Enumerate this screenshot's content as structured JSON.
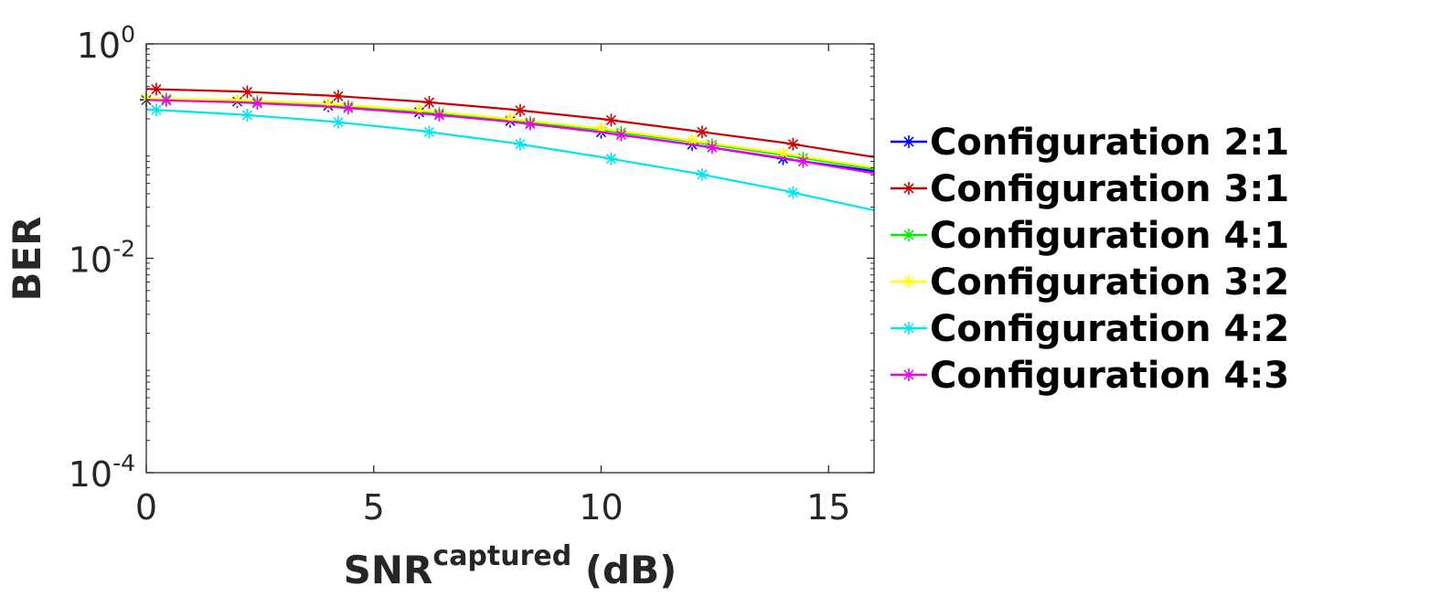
{
  "chart_data": {
    "type": "line",
    "title": "",
    "xlabel": {
      "base": "SNR",
      "superscript": "captured",
      "suffix": " (dB)"
    },
    "ylabel": "BER",
    "xlim": [
      0,
      16
    ],
    "ylim": [
      0.0001,
      1
    ],
    "yscale": "log",
    "x_ticks": [
      "0",
      "5",
      "10",
      "15"
    ],
    "y_ticks": [
      {
        "base": "10",
        "exp": "0"
      },
      {
        "base": "10",
        "exp": "-2"
      },
      {
        "base": "10",
        "exp": "-4"
      }
    ],
    "grid": false,
    "legend_position": "right-outside",
    "marker": "asterisk",
    "series": [
      {
        "name": "Configuration 2:1",
        "color": "#0000ff",
        "x": [
          0,
          2,
          4,
          6,
          8,
          10,
          12,
          14,
          16
        ],
        "y": [
          0.3,
          0.29,
          0.265,
          0.23,
          0.19,
          0.15,
          0.115,
          0.085,
          0.065
        ]
      },
      {
        "name": "Configuration 3:1",
        "color": "#cc0000",
        "x": [
          0,
          2,
          4,
          6,
          8,
          10,
          12,
          14,
          16
        ],
        "y": [
          0.38,
          0.36,
          0.33,
          0.29,
          0.245,
          0.2,
          0.155,
          0.12,
          0.088
        ]
      },
      {
        "name": "Configuration 4:1",
        "color": "#00ee00",
        "x": [
          0,
          2,
          4,
          6,
          8,
          10,
          12,
          14,
          16
        ],
        "y": [
          0.31,
          0.295,
          0.27,
          0.235,
          0.195,
          0.158,
          0.122,
          0.092,
          0.068
        ]
      },
      {
        "name": "Configuration 3:2",
        "color": "#ffff00",
        "x": [
          0,
          2,
          4,
          6,
          8,
          10,
          12,
          14,
          16
        ],
        "y": [
          0.31,
          0.3,
          0.275,
          0.24,
          0.2,
          0.162,
          0.125,
          0.095,
          0.07
        ]
      },
      {
        "name": "Configuration 4:2",
        "color": "#00e5ee",
        "x": [
          0,
          2,
          4,
          6,
          8,
          10,
          12,
          14,
          16
        ],
        "y": [
          0.245,
          0.22,
          0.19,
          0.155,
          0.12,
          0.088,
          0.063,
          0.043,
          0.028
        ]
      },
      {
        "name": "Configuration 4:3",
        "color": "#ee00ee",
        "x": [
          0,
          2,
          4,
          6,
          8,
          10,
          12,
          14,
          16
        ],
        "y": [
          0.3,
          0.285,
          0.26,
          0.225,
          0.188,
          0.15,
          0.115,
          0.086,
          0.062
        ]
      }
    ]
  }
}
